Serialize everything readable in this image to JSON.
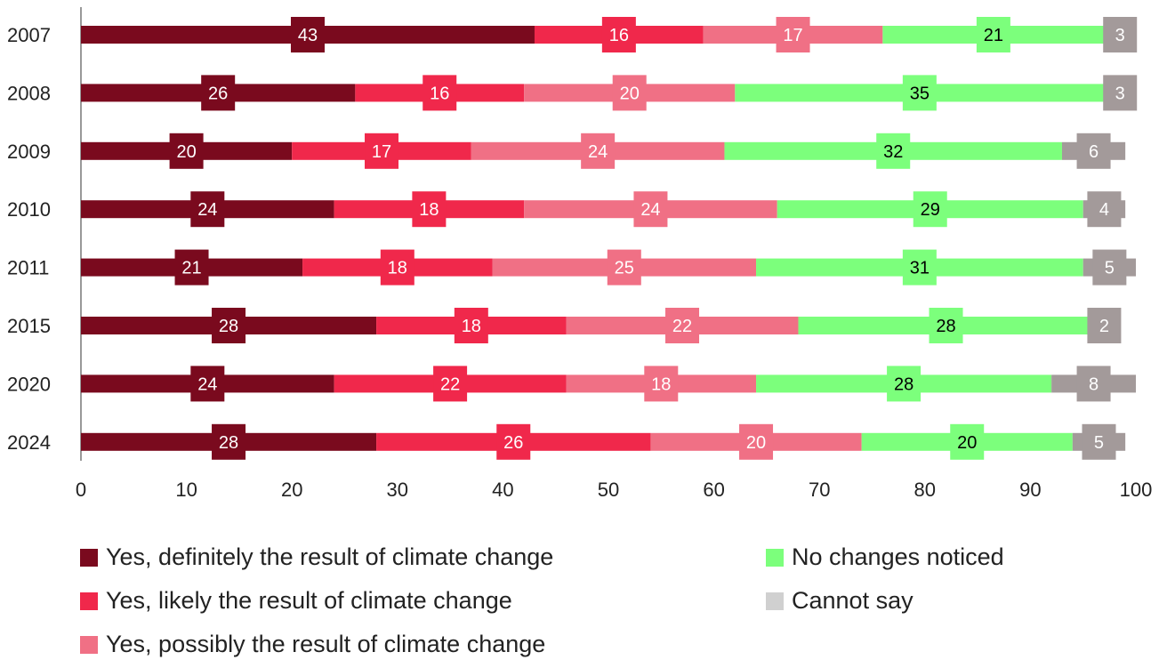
{
  "chart_data": {
    "type": "bar",
    "orientation": "horizontal",
    "stacked": true,
    "categories": [
      "2007",
      "2008",
      "2009",
      "2010",
      "2011",
      "2015",
      "2020",
      "2024"
    ],
    "series": [
      {
        "name": "Yes, definitely the result of climate change",
        "color": "#7a0a1e",
        "label_color": "#ffffff",
        "values": [
          43,
          26,
          20,
          24,
          21,
          28,
          24,
          28
        ]
      },
      {
        "name": "Yes, likely the result of climate change",
        "color": "#f0284b",
        "label_color": "#ffffff",
        "values": [
          16,
          16,
          17,
          18,
          18,
          18,
          22,
          26
        ]
      },
      {
        "name": "Yes, possibly the result of climate change",
        "color": "#f07085",
        "label_color": "#ffffff",
        "values": [
          17,
          20,
          24,
          24,
          25,
          22,
          18,
          20
        ]
      },
      {
        "name": "No changes noticed",
        "color": "#7cff7c",
        "label_color": "#000000",
        "values": [
          21,
          35,
          32,
          29,
          31,
          28,
          28,
          20
        ]
      },
      {
        "name": "Cannot say",
        "color": "#a39a9a",
        "legend_color": "#d0d0d0",
        "label_color": "#ffffff",
        "values": [
          3,
          3,
          6,
          4,
          5,
          2,
          8,
          5
        ]
      }
    ],
    "xlim": [
      0,
      100
    ],
    "xticks": [
      "0",
      "10",
      "20",
      "30",
      "40",
      "50",
      "60",
      "70",
      "80",
      "90",
      "100"
    ],
    "title": "",
    "xlabel": "",
    "ylabel": "",
    "grid": false,
    "legend_position": "bottom"
  }
}
